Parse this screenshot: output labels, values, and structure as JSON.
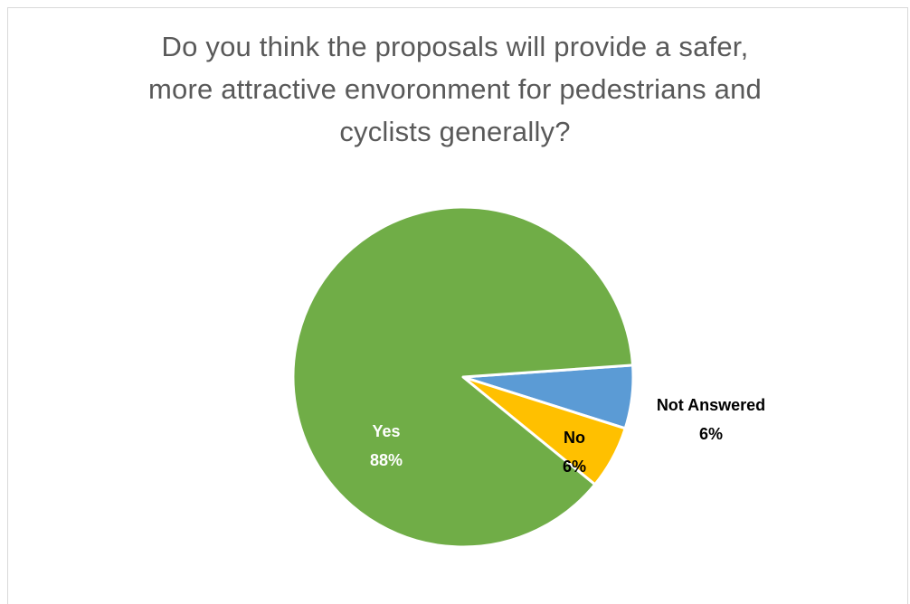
{
  "chart_data": {
    "type": "pie",
    "title_lines": [
      "Do you think the proposals will provide a safer,",
      "more attractive envoronment for pedestrians and",
      "cyclists generally?"
    ],
    "categories": [
      "Not Answered",
      "No",
      "Yes"
    ],
    "values": [
      6,
      6,
      88
    ],
    "labels": [
      {
        "name": "Not Answered",
        "percent": "6%"
      },
      {
        "name": "No",
        "percent": "6%"
      },
      {
        "name": "Yes",
        "percent": "88%"
      }
    ],
    "colors": {
      "Not Answered": "#5b9bd5",
      "No": "#ffc000",
      "Yes": "#70ad47"
    },
    "legend": "none"
  }
}
